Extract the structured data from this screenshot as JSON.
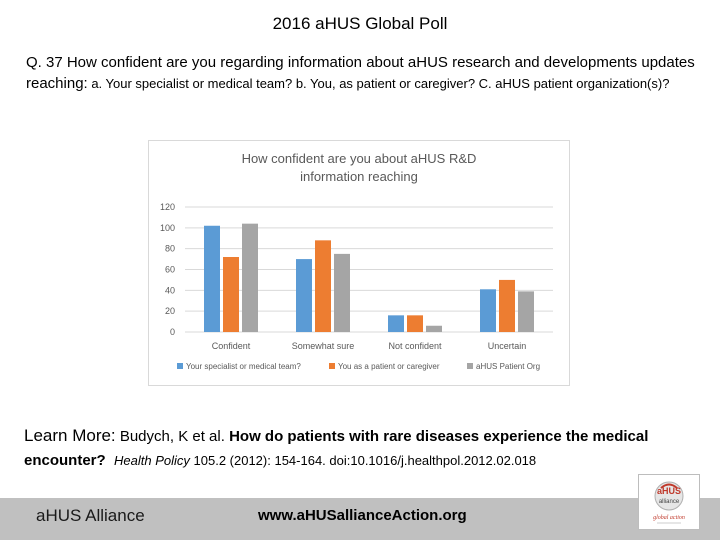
{
  "slide": {
    "title": "2016 aHUS Global Poll",
    "question_main": "Q. 37   How confident are you regarding information about aHUS research and developments updates reaching:",
    "question_parts": " a. Your specialist or medical team?  b. You, as patient or caregiver?  C.  aHUS patient organization(s)?"
  },
  "learn_more": {
    "label": "Learn More:",
    "authors": "  Budych, K et al.  ",
    "article": "How do patients with rare diseases experience the medical encounter?",
    "journal": "Health Policy",
    "citation": " 105.2 (2012): 154-164. doi:10.1016/j.healthpol.2012.02.018"
  },
  "footer": {
    "org": "aHUS Alliance",
    "url": "www.aHUSallianceAction.org"
  },
  "logo": {
    "line1": "aHUS",
    "line2": "alliance",
    "tagline": "global action"
  },
  "chart_data": {
    "type": "bar",
    "title_lines": [
      "How confident  are you about aHUS R&D",
      "information reaching"
    ],
    "categories": [
      "Confident",
      "Somewhat sure",
      "Not confident",
      "Uncertain"
    ],
    "series": [
      {
        "name": "Your specialist or medical team?",
        "color": "#5b9bd5",
        "values": [
          102,
          70,
          16,
          41
        ]
      },
      {
        "name": "You as a patient or caregiver",
        "color": "#ed7d31",
        "values": [
          72,
          88,
          16,
          50
        ]
      },
      {
        "name": "aHUS Patient Org",
        "color": "#a5a5a5",
        "values": [
          104,
          75,
          6,
          39
        ]
      }
    ],
    "yticks": [
      0,
      20,
      40,
      60,
      80,
      100,
      120
    ],
    "ylim": [
      0,
      120
    ],
    "xlabel": "",
    "ylabel": "",
    "grid": true,
    "legend_position": "bottom"
  }
}
